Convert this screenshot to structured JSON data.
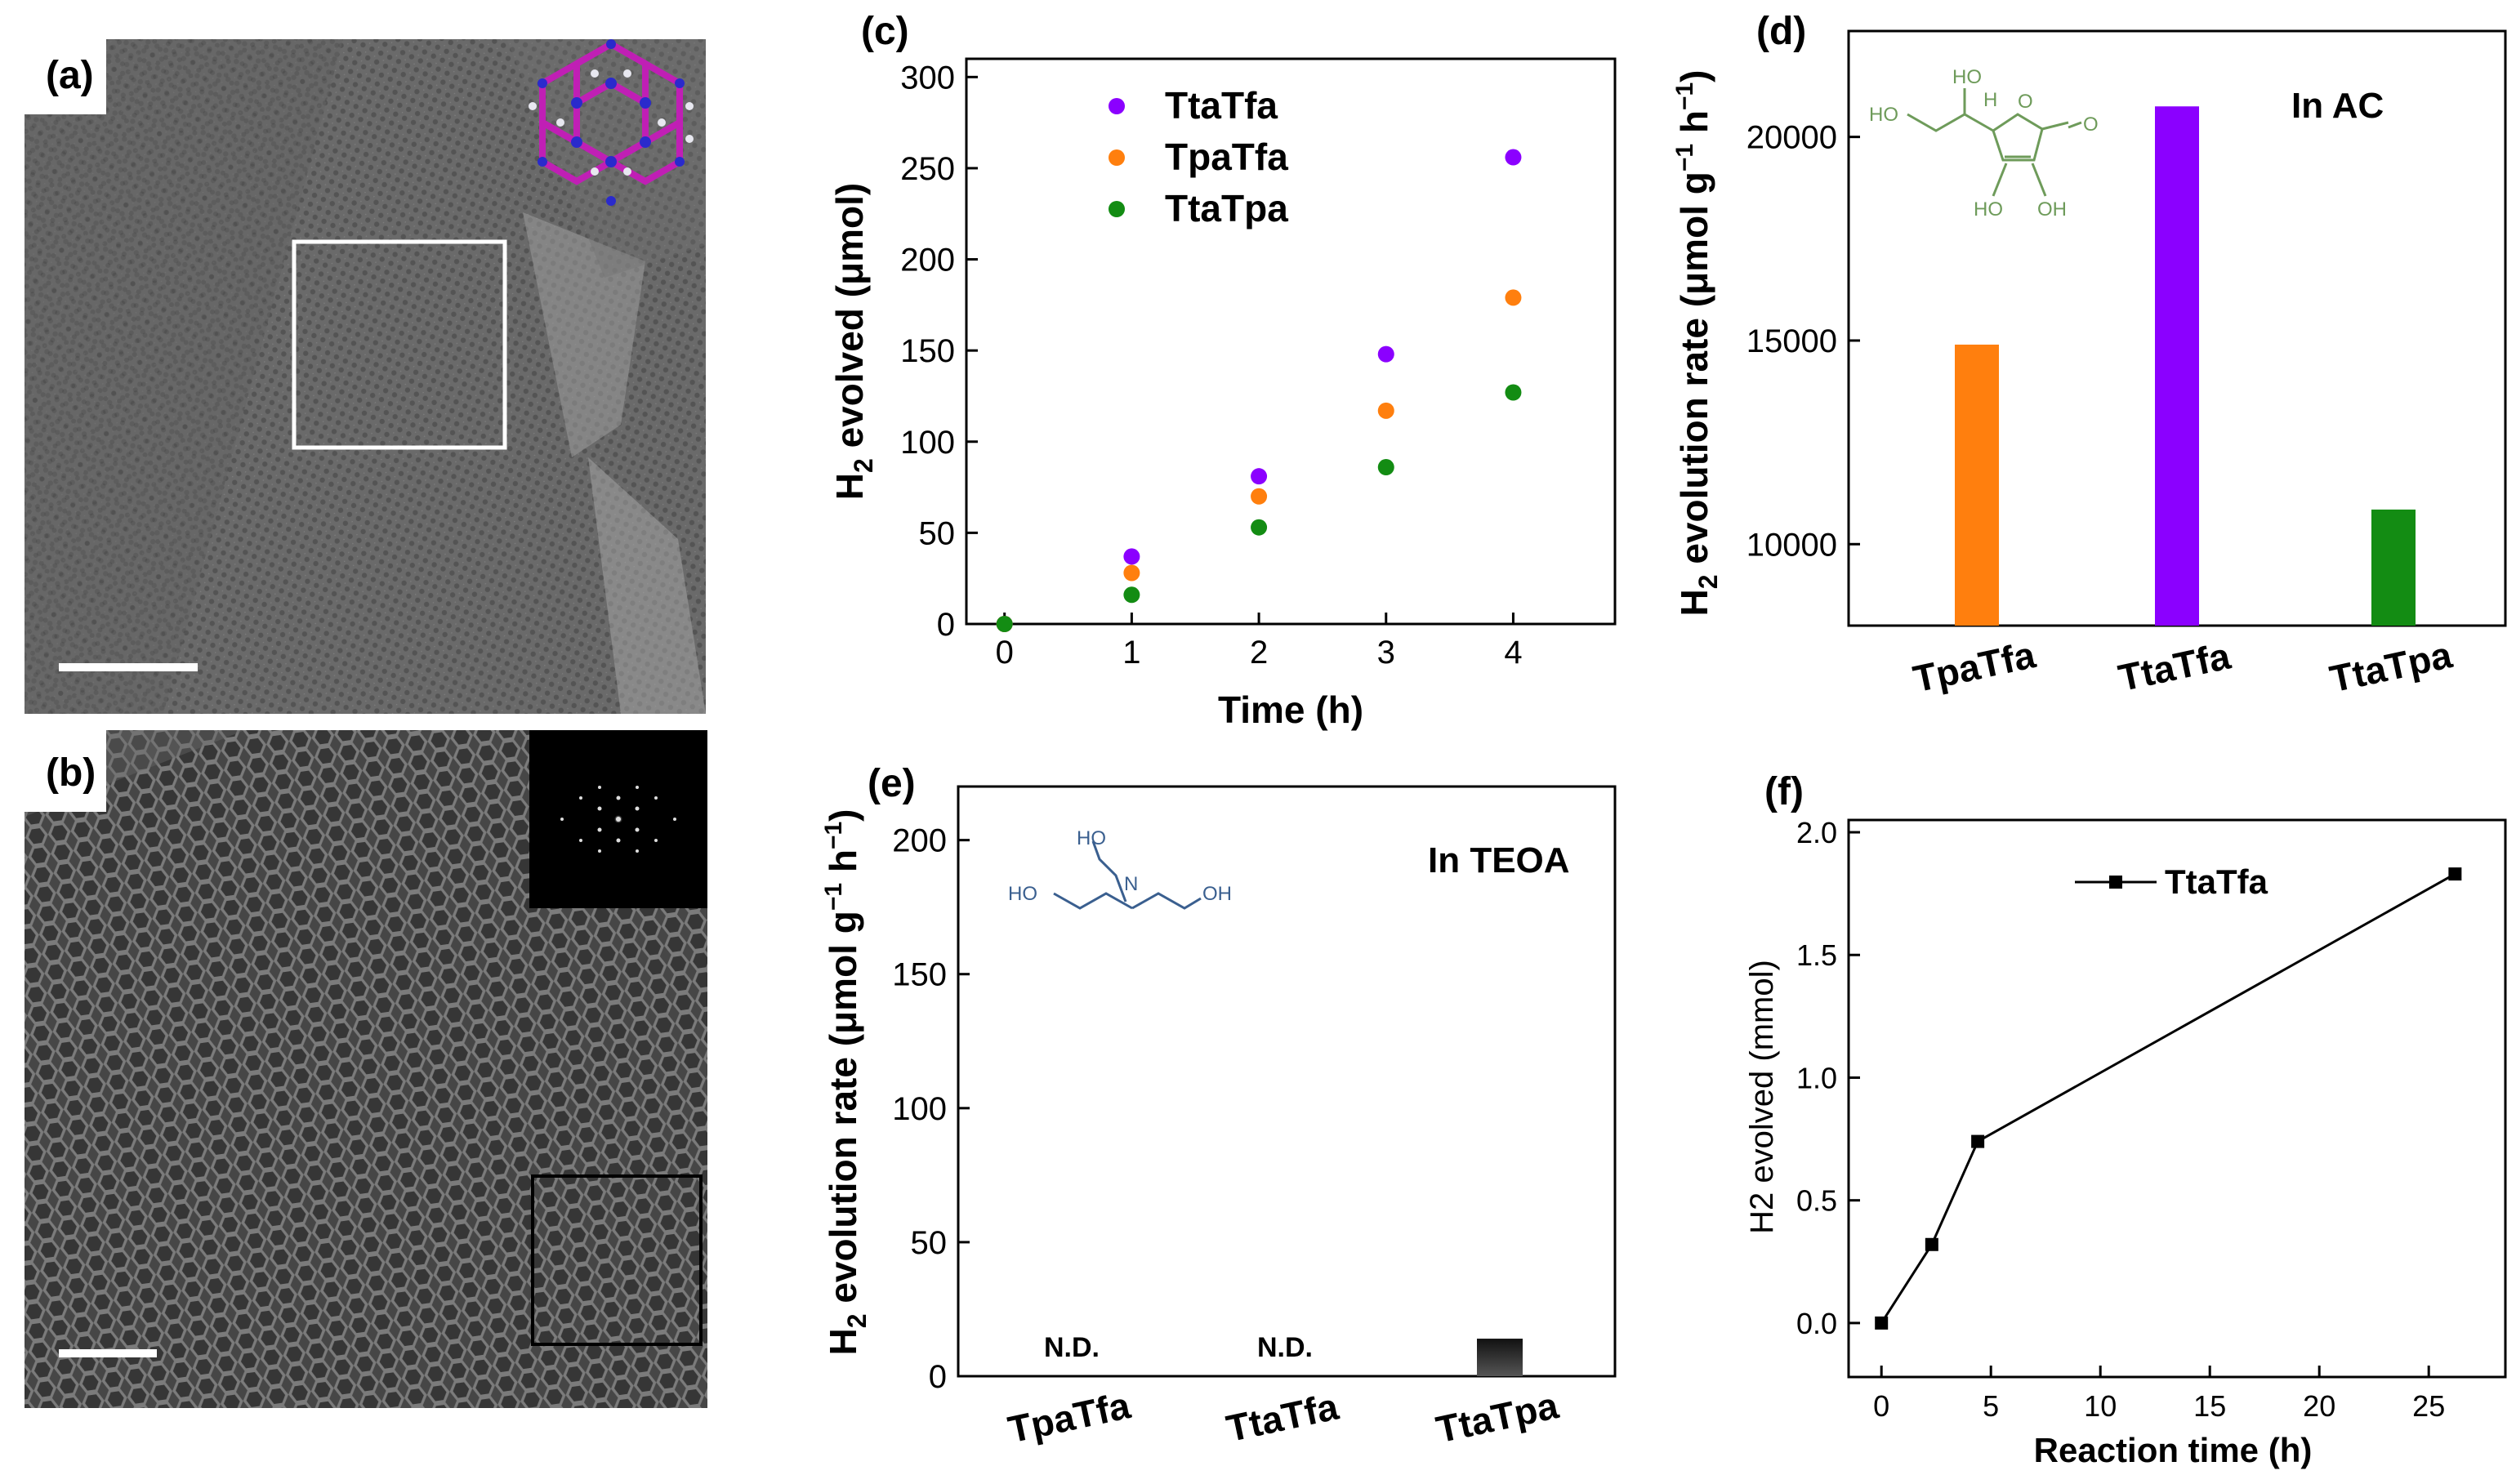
{
  "panels": {
    "a": {
      "label": "(a)"
    },
    "b": {
      "label": "(b)"
    },
    "c": {
      "label": "(c)"
    },
    "d": {
      "label": "(d)"
    },
    "e": {
      "label": "(e)"
    },
    "f": {
      "label": "(f)"
    }
  },
  "colors": {
    "TtaTfa": "#8b00ff",
    "TpaTfa": "#ff7f0e",
    "TtaTpa": "#138c13",
    "f_line": "#000000",
    "e_bar": "#2a2a2a"
  },
  "chart_data": [
    {
      "id": "c",
      "type": "scatter",
      "xlabel": "Time (h)",
      "ylabel_main": "H",
      "ylabel_sub": "2",
      "ylabel_rest": " evolved (μmol)",
      "xlim": [
        -0.3,
        4.8
      ],
      "ylim": [
        0,
        310
      ],
      "xticks": [
        0,
        1,
        2,
        3,
        4
      ],
      "yticks": [
        0,
        50,
        100,
        150,
        200,
        250,
        300
      ],
      "x": [
        0,
        1,
        2,
        3,
        4
      ],
      "series": [
        {
          "name": "TtaTfa",
          "values": [
            0,
            37,
            81,
            148,
            256
          ]
        },
        {
          "name": "TpaTfa",
          "values": [
            0,
            28,
            70,
            117,
            179
          ]
        },
        {
          "name": "TtaTpa",
          "values": [
            0,
            16,
            53,
            86,
            127
          ]
        }
      ],
      "legend": "top-left"
    },
    {
      "id": "d",
      "type": "bar",
      "categories": [
        "TpaTfa",
        "TtaTfa",
        "TtaTpa"
      ],
      "values": [
        14900,
        20750,
        10850
      ],
      "ylim": [
        8000,
        22600
      ],
      "yticks": [
        10000,
        15000,
        20000
      ],
      "ylabel_main": "H",
      "ylabel_sub": "2",
      "ylabel_rest": " evolution rate (μmol g",
      "ylabel_sup1": "−1",
      "ylabel_mid": " h",
      "ylabel_sup2": "−1",
      "ylabel_end": ")",
      "annotation": "In AC",
      "molecule_labels": [
        "HO",
        "HO",
        "H",
        "O",
        "O",
        "HO",
        "OH"
      ]
    },
    {
      "id": "e",
      "type": "bar",
      "categories": [
        "TpaTfa",
        "TtaTfa",
        "TtaTpa"
      ],
      "values": [
        0,
        0,
        14
      ],
      "value_labels": [
        "N.D.",
        "N.D.",
        ""
      ],
      "ylim": [
        0,
        220
      ],
      "yticks": [
        0,
        50,
        100,
        150,
        200
      ],
      "ylabel_main": "H",
      "ylabel_sub": "2",
      "ylabel_rest": " evolution rate (μmol g",
      "ylabel_sup1": "−1",
      "ylabel_mid": " h",
      "ylabel_sup2": "−1",
      "ylabel_end": ")",
      "annotation": "In TEOA",
      "molecule_labels": [
        "HO",
        "N",
        "HO",
        "OH"
      ]
    },
    {
      "id": "f",
      "type": "line",
      "xlabel": "Reaction time (h)",
      "ylabel": "H2 evolved (mmol)",
      "xlim": [
        -1.5,
        28.5
      ],
      "ylim": [
        -0.22,
        2.05
      ],
      "xticks": [
        0,
        5,
        10,
        15,
        20,
        25
      ],
      "yticks": [
        0.0,
        0.5,
        1.0,
        1.5,
        2.0
      ],
      "ytick_labels": [
        "0.0",
        "0.5",
        "1.0",
        "1.5",
        "2.0"
      ],
      "series": [
        {
          "name": "TtaTfa",
          "x": [
            0,
            2.3,
            4.4,
            26.2
          ],
          "values": [
            0.0,
            0.32,
            0.74,
            1.83
          ]
        }
      ],
      "legend": "top-left"
    }
  ]
}
